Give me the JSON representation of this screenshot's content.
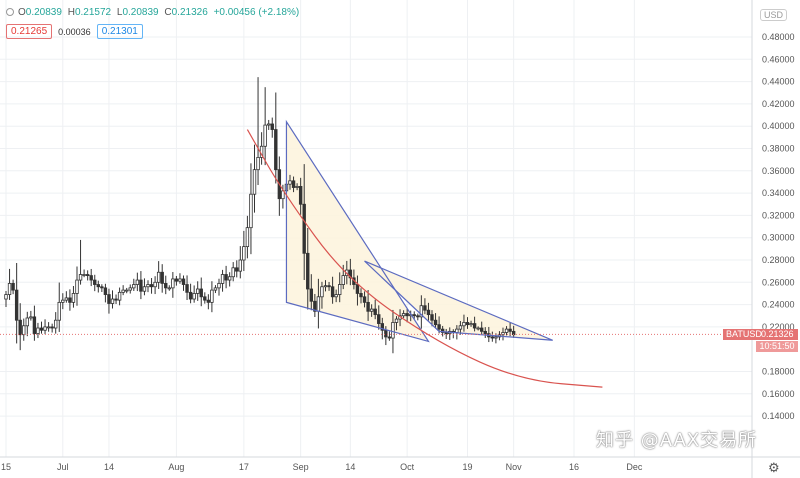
{
  "ohlc": {
    "open_label": "O",
    "open": "0.20839",
    "high_label": "H",
    "high": "0.21572",
    "low_label": "L",
    "low": "0.20839",
    "close_label": "C",
    "close": "0.21326",
    "change": "+0.00456 (+2.18%)"
  },
  "quote": {
    "sell": "0.21265",
    "spread": "0.00036",
    "buy": "0.21301"
  },
  "currency": "USD",
  "price_tag": {
    "symbol": "BATUSD",
    "price": "0.21326",
    "countdown": "10:51:50"
  },
  "watermark": "知乎 @AAX交易所",
  "colors": {
    "up": "#26a69a",
    "down": "#ef5350",
    "candle": "#333333",
    "pattern": "#5c6bc0",
    "fill": "#fdf3dc",
    "arc": "#d9534f",
    "price_line": "#e57373",
    "grid": "#eef0f3"
  },
  "icons": {
    "settings": "gear-icon"
  },
  "chart_data": {
    "type": "candlestick",
    "symbol": "BATUSD",
    "y_axis": {
      "ylim": [
        0.138,
        0.497
      ],
      "ticks": [
        "0.48000",
        "0.46000",
        "0.44000",
        "0.42000",
        "0.40000",
        "0.38000",
        "0.36000",
        "0.34000",
        "0.32000",
        "0.30000",
        "0.28000",
        "0.26000",
        "0.24000",
        "0.22000",
        "0.18000",
        "0.16000",
        "0.14000"
      ]
    },
    "x_axis": {
      "ticks": [
        "15",
        "Jul",
        "14",
        "Aug",
        "17",
        "Sep",
        "14",
        "Oct",
        "19",
        "Nov",
        "16",
        "Dec"
      ],
      "tick_day_index": [
        0,
        16,
        29,
        48,
        67,
        83,
        97,
        113,
        130,
        143,
        160,
        177
      ]
    },
    "grid": true,
    "close_series": [
      0.249,
      0.259,
      0.253,
      0.226,
      0.213,
      0.221,
      0.228,
      0.229,
      0.214,
      0.219,
      0.217,
      0.22,
      0.22,
      0.219,
      0.226,
      0.242,
      0.244,
      0.246,
      0.242,
      0.25,
      0.262,
      0.267,
      0.267,
      0.266,
      0.262,
      0.258,
      0.256,
      0.255,
      0.249,
      0.241,
      0.245,
      0.244,
      0.251,
      0.253,
      0.253,
      0.255,
      0.258,
      0.262,
      0.252,
      0.256,
      0.258,
      0.256,
      0.26,
      0.269,
      0.259,
      0.255,
      0.255,
      0.263,
      0.261,
      0.263,
      0.258,
      0.251,
      0.245,
      0.25,
      0.254,
      0.247,
      0.244,
      0.242,
      0.253,
      0.255,
      0.259,
      0.267,
      0.262,
      0.265,
      0.273,
      0.27,
      0.28,
      0.292,
      0.309,
      0.339,
      0.361,
      0.372,
      0.382,
      0.401,
      0.402,
      0.397,
      0.361,
      0.335,
      0.342,
      0.348,
      0.351,
      0.345,
      0.346,
      0.33,
      0.286,
      0.254,
      0.243,
      0.234,
      0.247,
      0.256,
      0.257,
      0.256,
      0.247,
      0.249,
      0.258,
      0.266,
      0.271,
      0.264,
      0.258,
      0.25,
      0.247,
      0.242,
      0.234,
      0.236,
      0.231,
      0.223,
      0.217,
      0.211,
      0.21,
      0.224,
      0.227,
      0.23,
      0.232,
      0.23,
      0.231,
      0.23,
      0.229,
      0.239,
      0.235,
      0.231,
      0.226,
      0.222,
      0.218,
      0.215,
      0.214,
      0.216,
      0.215,
      0.218,
      0.221,
      0.224,
      0.222,
      0.223,
      0.219,
      0.219,
      0.216,
      0.214,
      0.211,
      0.21,
      0.211,
      0.213,
      0.215,
      0.218,
      0.216,
      0.213
    ],
    "drawings": [
      {
        "type": "triangle",
        "points": [
          [
            79,
            0.404
          ],
          [
            79,
            0.242
          ],
          [
            119,
            0.207
          ]
        ]
      },
      {
        "type": "triangle",
        "points": [
          [
            101,
            0.279
          ],
          [
            122,
            0.216
          ],
          [
            154,
            0.208
          ]
        ]
      },
      {
        "type": "arc",
        "points": [
          [
            68,
            0.397
          ],
          [
            78,
            0.341
          ],
          [
            96,
            0.262
          ],
          [
            122,
            0.205
          ],
          [
            145,
            0.172
          ],
          [
            168,
            0.166
          ]
        ]
      }
    ],
    "current_price": 0.21326
  }
}
